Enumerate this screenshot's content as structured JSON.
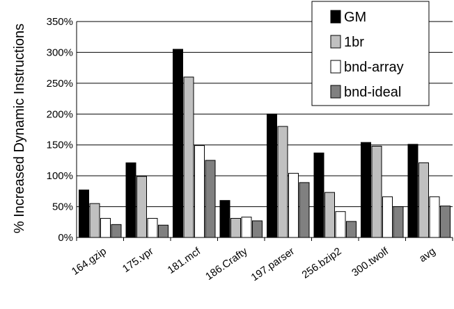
{
  "chart_data": {
    "type": "bar",
    "categories": [
      "164.gzip",
      "175.vpr",
      "181.mcf",
      "186.Crafty",
      "197.parser",
      "256.bzip2",
      "300.twolf",
      "avg"
    ],
    "series": [
      {
        "name": "GM",
        "color": "#000000",
        "values": [
          77,
          121,
          305,
          60,
          200,
          137,
          154,
          151
        ]
      },
      {
        "name": "1br",
        "color": "#c0c0c0",
        "values": [
          55,
          99,
          260,
          31,
          180,
          73,
          148,
          121
        ]
      },
      {
        "name": "bnd-array",
        "color": "#ffffff",
        "values": [
          31,
          31,
          149,
          33,
          104,
          42,
          66,
          66
        ]
      },
      {
        "name": "bnd-ideal",
        "color": "#808080",
        "values": [
          21,
          20,
          125,
          27,
          89,
          26,
          50,
          51
        ]
      }
    ],
    "ylabel": "% Increased Dynamic Instructions",
    "yticks": [
      "0%",
      "50%",
      "100%",
      "150%",
      "200%",
      "250%",
      "300%",
      "350%"
    ],
    "ylim": [
      0,
      350
    ],
    "grid": true,
    "legend_position": "top-right"
  }
}
